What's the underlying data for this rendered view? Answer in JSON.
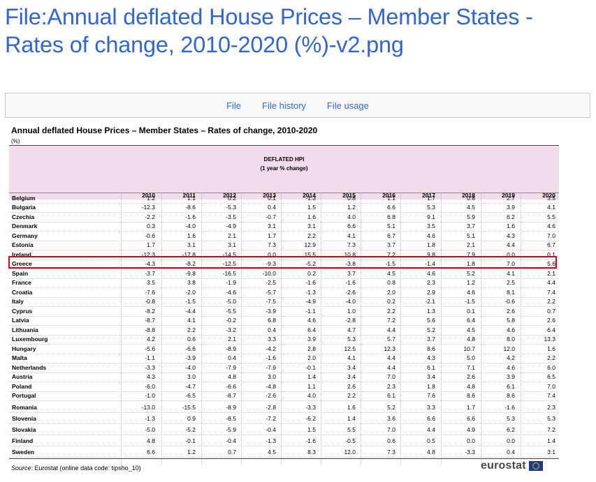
{
  "page": {
    "title": "File:Annual deflated House Prices – Member States - Rates of change, 2010-2020 (%)-v2.png"
  },
  "tabs": [
    {
      "label": "File"
    },
    {
      "label": "File history"
    },
    {
      "label": "File usage"
    }
  ],
  "figure": {
    "title": "Annual deflated House Prices – Member States – Rates of change, 2010-2020",
    "unit": "(%)",
    "header_line1": "DEFLATED HPI",
    "header_line2": "(1 year % change)",
    "source_label": "Source:",
    "source_text": " Eurostat (online data code: tipsho_10)",
    "logo_text": "eurostat",
    "highlighted_country": "Greece"
  },
  "chart_data": {
    "type": "table",
    "title": "Annual deflated House Prices – Member States – Rates of change, 2010-2020",
    "unit": "%",
    "years": [
      "2010",
      "2011",
      "2012",
      "2013",
      "2014",
      "2015",
      "2016",
      "2017",
      "2018",
      "2019",
      "2020"
    ],
    "rows": [
      {
        "country": "Belgium",
        "values": [
          "1.2",
          "1.1",
          "0.2",
          "0.1",
          "-1.3",
          "0.8",
          "1.1",
          "1.7",
          "0.8",
          "2.7",
          "3.5"
        ]
      },
      {
        "country": "Bulgaria",
        "values": [
          "-12.3",
          "-8.6",
          "-5.3",
          "0.4",
          "1.5",
          "1.2",
          "6.6",
          "5.3",
          "4.5",
          "3.9",
          "4.1"
        ]
      },
      {
        "country": "Czechia",
        "values": [
          "-2.2",
          "-1.6",
          "-3.5",
          "-0.7",
          "1.6",
          "4.0",
          "6.8",
          "9.1",
          "5.9",
          "6.2",
          "5.5"
        ]
      },
      {
        "country": "Denmark",
        "values": [
          "0.3",
          "-4.0",
          "-4.9",
          "3.1",
          "3.1",
          "6.6",
          "5.1",
          "3.5",
          "3.7",
          "1.6",
          "4.6"
        ]
      },
      {
        "country": "Germany",
        "values": [
          "-0.6",
          "1.6",
          "2.1",
          "1.7",
          "2.2",
          "4.1",
          "6.7",
          "4.6",
          "5.1",
          "4.3",
          "7.0"
        ]
      },
      {
        "country": "Estonia",
        "values": [
          "1.7",
          "3.1",
          "3.1",
          "7.3",
          "12.9",
          "7.3",
          "3.7",
          "1.8",
          "2.1",
          "4.4",
          "6.7"
        ]
      },
      {
        "country": "Ireland",
        "values": [
          "-12.3",
          "-17.8",
          "-14.5",
          "0.0",
          "15.5",
          "10.8",
          "7.2",
          "9.8",
          "7.9",
          "0.0",
          "0.1"
        ]
      },
      {
        "country": "Greece",
        "values": [
          "-4.3",
          "-8.2",
          "-12.5",
          "-9.3",
          "-5.2",
          "-3.8",
          "-1.5",
          "-1.4",
          "1.8",
          "7.0",
          "5.6"
        ]
      },
      {
        "country": "Spain",
        "values": [
          "-3.7",
          "-9.8",
          "-16.5",
          "-10.0",
          "0.2",
          "3.7",
          "4.5",
          "4.6",
          "5.2",
          "4.1",
          "2.1"
        ]
      },
      {
        "country": "France",
        "values": [
          "3.5",
          "3.8",
          "-1.9",
          "-2.5",
          "-1.6",
          "-1.6",
          "0.8",
          "2.3",
          "1.2",
          "2.5",
          "4.4"
        ]
      },
      {
        "country": "Croatia",
        "values": [
          "-7.6",
          "-2.0",
          "-4.6",
          "-5.7",
          "-1.3",
          "-2.6",
          "2.0",
          "2.9",
          "4.6",
          "8.1",
          "7.4"
        ]
      },
      {
        "country": "Italy",
        "values": [
          "-0.8",
          "-1.5",
          "-5.0",
          "-7.5",
          "-4.9",
          "-4.0",
          "0.2",
          "-2.1",
          "-1.5",
          "-0.6",
          "2.2"
        ]
      },
      {
        "country": "Cyprus",
        "values": [
          "-8.2",
          "-4.4",
          "-5.5",
          "-3.9",
          "-1.1",
          "1.0",
          "2.2",
          "1.3",
          "0.1",
          "2.6",
          "0.7"
        ]
      },
      {
        "country": "Latvia",
        "values": [
          "-8.7",
          "4.1",
          "-0.2",
          "6.8",
          "4.6",
          "-2.8",
          "7.2",
          "5.6",
          "6.4",
          "5.8",
          "2.6"
        ]
      },
      {
        "country": "Lithuania",
        "values": [
          "-8.8",
          "2.2",
          "-3.2",
          "0.4",
          "6.4",
          "4.7",
          "4.4",
          "5.2",
          "4.5",
          "4.6",
          "6.4"
        ]
      },
      {
        "country": "Luxembourg",
        "values": [
          "4.2",
          "0.6",
          "2.1",
          "3.3",
          "3.9",
          "5.3",
          "5.7",
          "3.7",
          "4.8",
          "8.0",
          "13.3"
        ]
      },
      {
        "country": "Hungary",
        "values": [
          "-5.6",
          "-6.6",
          "-8.9",
          "-4.2",
          "2.8",
          "12.5",
          "12.3",
          "8.6",
          "10.7",
          "12.0",
          "1.6"
        ]
      },
      {
        "country": "Malta",
        "values": [
          "-1.1",
          "-3.9",
          "0.4",
          "-1.6",
          "2.0",
          "4.1",
          "4.4",
          "4.3",
          "5.0",
          "4.2",
          "2.2"
        ]
      },
      {
        "country": "Netherlands",
        "values": [
          "-3.3",
          "-4.0",
          "-7.9",
          "-7.9",
          "-0.1",
          "3.4",
          "4.4",
          "6.1",
          "7.1",
          "4.6",
          "6.0"
        ]
      },
      {
        "country": "Austria",
        "values": [
          "4.3",
          "3.0",
          "4.8",
          "3.0",
          "1.4",
          "3.4",
          "7.0",
          "3.4",
          "2.6",
          "3.9",
          "6.5"
        ]
      },
      {
        "country": "Poland",
        "values": [
          "-6.0",
          "-4.7",
          "-6.6",
          "-4.8",
          "1.1",
          "2.6",
          "2.3",
          "1.8",
          "4.8",
          "6.1",
          "7.0"
        ]
      },
      {
        "country": "Portugal",
        "values": [
          "-1.0",
          "-6.5",
          "-8.7",
          "-2.6",
          "4.0",
          "2.2",
          "6.1",
          "7.6",
          "8.6",
          "8.6",
          "7.4"
        ]
      },
      {
        "country": "Romania",
        "values": [
          "-13.0",
          "-15.5",
          "-8.9",
          "-2.8",
          "-3.3",
          "1.6",
          "5.2",
          "3.3",
          "1.7",
          "-1.6",
          "2.3"
        ]
      },
      {
        "country": "Slovenia",
        "values": [
          "-1.3",
          "0.9",
          "-8.5",
          "-7.2",
          "-6.2",
          "1.4",
          "3.6",
          "6.6",
          "6.6",
          "5.3",
          "5.3"
        ]
      },
      {
        "country": "Slovakia",
        "values": [
          "-5.0",
          "-5.2",
          "-5.9",
          "-0.4",
          "1.5",
          "5.5",
          "7.0",
          "4.4",
          "4.9",
          "6.2",
          "7.2"
        ]
      },
      {
        "country": "Finland",
        "values": [
          "4.8",
          "-0.1",
          "-0.4",
          "-1.3",
          "-1.6",
          "-0.5",
          "0.6",
          "0.5",
          "0.0",
          "0.0",
          "1.4"
        ]
      },
      {
        "country": "Sweden",
        "values": [
          "6.6",
          "1.2",
          "0.7",
          "4.5",
          "8.3",
          "12.0",
          "7.3",
          "4.8",
          "-3.3",
          "0.4",
          "3.1"
        ]
      }
    ]
  }
}
